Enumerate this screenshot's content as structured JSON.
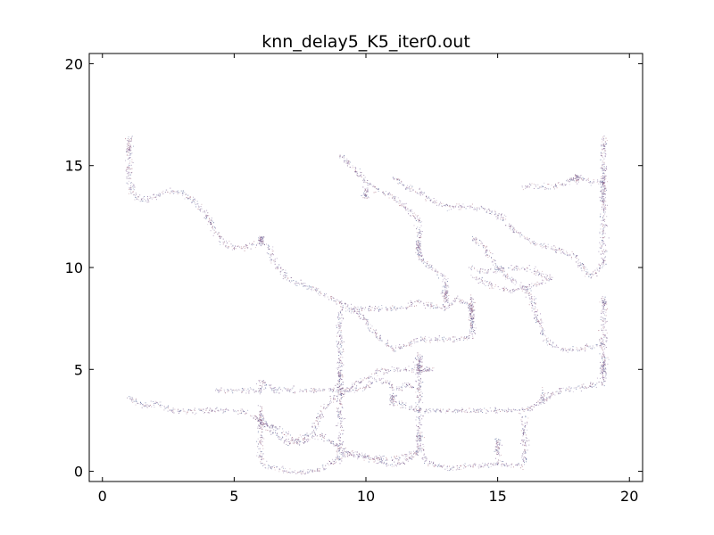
{
  "chart_data": {
    "type": "scatter",
    "title": "knn_delay5_K5_iter0.out",
    "xlabel": "",
    "ylabel": "",
    "xlim": [
      -0.5,
      20.5
    ],
    "ylim": [
      -0.5,
      20.5
    ],
    "xticks": [
      0,
      5,
      10,
      15,
      20
    ],
    "yticks": [
      0,
      5,
      10,
      15,
      20
    ],
    "xtick_labels": [
      "0",
      "5",
      "10",
      "15",
      "20"
    ],
    "ytick_labels": [
      "0",
      "5",
      "10",
      "15",
      "20"
    ],
    "grid": false,
    "legend": "none",
    "marker_colors": [
      "#6a4a7a",
      "#8a6aa0",
      "#b07a8a",
      "#5a6a9a",
      "#9a8ab0"
    ],
    "trajectories": [
      {
        "name": "",
        "points": [
          [
            1.0,
            16.5
          ],
          [
            1.0,
            15.5
          ],
          [
            1.0,
            14.5
          ],
          [
            1.1,
            13.7
          ],
          [
            1.5,
            13.3
          ],
          [
            2.0,
            13.5
          ],
          [
            2.5,
            13.8
          ],
          [
            3.0,
            13.7
          ],
          [
            3.5,
            13.2
          ],
          [
            4.0,
            12.4
          ],
          [
            4.4,
            11.5
          ],
          [
            4.8,
            11.0
          ],
          [
            5.5,
            11.0
          ],
          [
            6.0,
            11.3
          ],
          [
            6.3,
            11.0
          ],
          [
            6.5,
            10.3
          ],
          [
            6.8,
            9.8
          ],
          [
            7.0,
            9.5
          ],
          [
            7.5,
            9.2
          ],
          [
            8.0,
            9.0
          ],
          [
            8.5,
            8.6
          ],
          [
            9.0,
            8.3
          ],
          [
            9.5,
            8.0
          ],
          [
            10.0,
            8.0
          ],
          [
            10.5,
            8.0
          ],
          [
            11.0,
            8.0
          ],
          [
            11.5,
            8.1
          ],
          [
            12.0,
            8.4
          ],
          [
            12.5,
            8.1
          ],
          [
            13.0,
            8.0
          ],
          [
            13.5,
            8.5
          ],
          [
            14.0,
            8.0
          ]
        ]
      },
      {
        "name": "",
        "points": [
          [
            9.0,
            15.6
          ],
          [
            9.3,
            15.2
          ],
          [
            9.6,
            14.8
          ],
          [
            10.0,
            14.2
          ],
          [
            10.5,
            13.8
          ],
          [
            11.0,
            13.5
          ],
          [
            11.5,
            13.0
          ],
          [
            12.0,
            12.3
          ],
          [
            12.0,
            11.5
          ],
          [
            12.0,
            10.5
          ],
          [
            12.3,
            10.2
          ],
          [
            12.7,
            9.8
          ],
          [
            13.0,
            9.5
          ],
          [
            13.0,
            8.5
          ]
        ]
      },
      {
        "name": "",
        "points": [
          [
            11.0,
            14.5
          ],
          [
            11.5,
            14.0
          ],
          [
            12.0,
            13.7
          ],
          [
            12.5,
            13.3
          ],
          [
            13.0,
            13.0
          ],
          [
            13.5,
            13.0
          ],
          [
            14.0,
            13.0
          ],
          [
            14.5,
            12.9
          ],
          [
            15.0,
            12.6
          ],
          [
            15.5,
            12.0
          ],
          [
            16.0,
            11.5
          ],
          [
            16.5,
            11.1
          ],
          [
            17.0,
            11.0
          ],
          [
            17.5,
            10.8
          ],
          [
            18.0,
            10.5
          ],
          [
            18.3,
            9.8
          ],
          [
            18.6,
            9.6
          ],
          [
            19.0,
            10.2
          ],
          [
            19.0,
            11.5
          ],
          [
            19.0,
            13.0
          ],
          [
            19.0,
            14.5
          ],
          [
            19.0,
            16.5
          ]
        ]
      },
      {
        "name": "",
        "points": [
          [
            16.0,
            14.0
          ],
          [
            16.5,
            14.0
          ],
          [
            17.0,
            14.0
          ],
          [
            17.5,
            14.1
          ],
          [
            18.0,
            14.5
          ],
          [
            18.5,
            14.2
          ],
          [
            19.0,
            14.2
          ]
        ]
      },
      {
        "name": "",
        "points": [
          [
            14.0,
            11.5
          ],
          [
            14.5,
            11.0
          ],
          [
            15.0,
            10.0
          ],
          [
            15.3,
            9.6
          ],
          [
            15.7,
            9.3
          ],
          [
            16.0,
            9.0
          ],
          [
            16.3,
            8.5
          ],
          [
            16.5,
            7.5
          ],
          [
            16.8,
            6.5
          ],
          [
            17.2,
            6.1
          ],
          [
            17.5,
            6.0
          ],
          [
            18.0,
            6.0
          ],
          [
            18.5,
            6.1
          ],
          [
            19.0,
            6.3
          ]
        ]
      },
      {
        "name": "",
        "points": [
          [
            14.0,
            10.0
          ],
          [
            14.5,
            9.8
          ],
          [
            15.0,
            9.9
          ],
          [
            15.5,
            10.0
          ],
          [
            16.0,
            10.0
          ],
          [
            16.5,
            9.8
          ],
          [
            17.0,
            9.5
          ],
          [
            16.5,
            9.2
          ],
          [
            16.0,
            9.0
          ],
          [
            15.5,
            8.9
          ],
          [
            15.0,
            9.0
          ],
          [
            14.5,
            9.3
          ],
          [
            14.0,
            9.6
          ]
        ]
      },
      {
        "name": "",
        "points": [
          [
            14.0,
            8.6
          ],
          [
            14.0,
            8.0
          ],
          [
            14.0,
            7.3
          ],
          [
            14.0,
            6.6
          ],
          [
            13.5,
            6.5
          ],
          [
            13.0,
            6.5
          ],
          [
            12.5,
            6.5
          ],
          [
            12.0,
            6.5
          ],
          [
            11.5,
            6.2
          ],
          [
            11.0,
            6.0
          ],
          [
            10.7,
            6.3
          ],
          [
            10.3,
            6.8
          ],
          [
            10.0,
            7.4
          ],
          [
            9.7,
            7.8
          ],
          [
            9.3,
            8.0
          ],
          [
            9.0,
            8.0
          ]
        ]
      },
      {
        "name": "",
        "points": [
          [
            9.0,
            8.0
          ],
          [
            9.0,
            7.0
          ],
          [
            9.0,
            6.0
          ],
          [
            9.0,
            5.0
          ],
          [
            9.0,
            4.5
          ],
          [
            9.0,
            4.0
          ],
          [
            9.0,
            3.0
          ],
          [
            9.0,
            2.0
          ],
          [
            9.0,
            1.0
          ],
          [
            9.0,
            0.5
          ]
        ]
      },
      {
        "name": "",
        "points": [
          [
            19.0,
            8.5
          ],
          [
            19.0,
            7.5
          ],
          [
            19.0,
            6.5
          ],
          [
            19.0,
            5.5
          ],
          [
            19.0,
            4.5
          ],
          [
            18.5,
            4.2
          ],
          [
            18.0,
            4.1
          ],
          [
            17.5,
            4.0
          ],
          [
            17.0,
            3.8
          ],
          [
            16.5,
            3.3
          ],
          [
            16.0,
            3.0
          ],
          [
            15.5,
            3.0
          ],
          [
            15.0,
            3.0
          ],
          [
            14.5,
            3.0
          ],
          [
            14.0,
            3.0
          ],
          [
            13.5,
            3.0
          ],
          [
            13.0,
            3.0
          ],
          [
            12.5,
            3.0
          ],
          [
            12.0,
            3.0
          ],
          [
            11.5,
            3.2
          ],
          [
            11.0,
            3.5
          ]
        ]
      },
      {
        "name": "",
        "points": [
          [
            12.0,
            5.8
          ],
          [
            12.0,
            5.2
          ],
          [
            12.0,
            4.5
          ],
          [
            12.0,
            4.0
          ],
          [
            12.0,
            3.5
          ],
          [
            12.0,
            3.0
          ],
          [
            12.0,
            2.2
          ],
          [
            12.0,
            1.5
          ],
          [
            12.2,
            0.6
          ],
          [
            12.6,
            0.3
          ],
          [
            13.0,
            0.2
          ],
          [
            13.5,
            0.2
          ],
          [
            14.0,
            0.3
          ],
          [
            14.5,
            0.3
          ],
          [
            15.0,
            0.4
          ],
          [
            15.5,
            0.3
          ],
          [
            16.0,
            0.3
          ],
          [
            16.0,
            1.0
          ],
          [
            16.0,
            2.0
          ],
          [
            16.0,
            2.8
          ]
        ]
      },
      {
        "name": "",
        "points": [
          [
            15.0,
            1.6
          ],
          [
            15.0,
            1.0
          ],
          [
            15.0,
            0.5
          ]
        ]
      },
      {
        "name": "",
        "points": [
          [
            12.0,
            5.0
          ],
          [
            12.5,
            5.0
          ],
          [
            11.5,
            5.0
          ],
          [
            11.0,
            5.0
          ],
          [
            10.5,
            4.9
          ],
          [
            10.0,
            4.6
          ],
          [
            9.5,
            4.2
          ],
          [
            9.0,
            3.8
          ],
          [
            8.5,
            3.3
          ],
          [
            8.2,
            2.7
          ],
          [
            8.0,
            2.0
          ],
          [
            7.5,
            1.6
          ],
          [
            7.0,
            1.4
          ],
          [
            6.5,
            1.9
          ],
          [
            6.1,
            2.4
          ],
          [
            6.0,
            2.7
          ]
        ]
      },
      {
        "name": "",
        "points": [
          [
            4.3,
            4.0
          ],
          [
            5.0,
            4.0
          ],
          [
            5.5,
            4.0
          ],
          [
            6.0,
            4.0
          ],
          [
            6.0,
            4.5
          ],
          [
            6.2,
            4.3
          ],
          [
            6.5,
            4.0
          ],
          [
            7.0,
            4.0
          ],
          [
            7.5,
            4.0
          ],
          [
            8.0,
            4.0
          ],
          [
            8.5,
            4.0
          ],
          [
            9.0,
            4.0
          ],
          [
            9.5,
            4.0
          ],
          [
            10.0,
            4.1
          ],
          [
            10.3,
            4.5
          ],
          [
            10.8,
            4.4
          ],
          [
            11.2,
            4.0
          ],
          [
            11.5,
            4.3
          ],
          [
            12.0,
            4.0
          ]
        ]
      },
      {
        "name": "",
        "points": [
          [
            1.0,
            3.7
          ],
          [
            1.3,
            3.4
          ],
          [
            1.6,
            3.2
          ],
          [
            2.0,
            3.4
          ],
          [
            2.3,
            3.2
          ],
          [
            2.6,
            3.0
          ],
          [
            3.0,
            3.0
          ],
          [
            3.5,
            3.0
          ],
          [
            4.0,
            3.0
          ],
          [
            4.5,
            3.0
          ],
          [
            5.0,
            3.0
          ],
          [
            5.5,
            2.9
          ],
          [
            6.0,
            2.5
          ],
          [
            6.5,
            2.2
          ],
          [
            7.0,
            1.8
          ],
          [
            7.4,
            1.4
          ],
          [
            7.8,
            1.6
          ],
          [
            8.2,
            1.8
          ],
          [
            8.6,
            1.5
          ],
          [
            9.0,
            1.2
          ],
          [
            9.3,
            0.9
          ],
          [
            9.6,
            0.8
          ],
          [
            10.0,
            0.7
          ],
          [
            10.5,
            0.5
          ],
          [
            11.0,
            0.3
          ],
          [
            11.5,
            0.5
          ],
          [
            11.8,
            0.8
          ],
          [
            12.0,
            1.0
          ]
        ]
      },
      {
        "name": "",
        "points": [
          [
            6.0,
            2.8
          ],
          [
            6.0,
            2.0
          ],
          [
            6.0,
            1.2
          ],
          [
            6.0,
            0.5
          ],
          [
            6.3,
            0.2
          ],
          [
            6.8,
            0.1
          ],
          [
            7.3,
            0.0
          ],
          [
            7.8,
            0.0
          ],
          [
            8.3,
            0.1
          ],
          [
            8.7,
            0.4
          ],
          [
            9.0,
            0.8
          ],
          [
            9.5,
            0.9
          ],
          [
            10.0,
            0.8
          ],
          [
            10.5,
            0.7
          ],
          [
            11.0,
            0.6
          ],
          [
            11.5,
            0.8
          ],
          [
            12.0,
            1.0
          ]
        ]
      },
      {
        "name": "",
        "points": [
          [
            10.0,
            13.9
          ],
          [
            10.0,
            13.4
          ]
        ]
      },
      {
        "name": "",
        "points": [
          [
            11.0,
            3.8
          ],
          [
            11.0,
            3.3
          ]
        ]
      }
    ],
    "clusters": [
      {
        "x": 6.0,
        "y": 11.4,
        "spread": 0.12,
        "count": 45
      },
      {
        "x": 12.0,
        "y": 11.0,
        "spread": 0.2,
        "count": 50
      },
      {
        "x": 12.0,
        "y": 5.3,
        "spread": 0.25,
        "count": 55
      },
      {
        "x": 14.0,
        "y": 7.7,
        "spread": 0.4,
        "count": 70
      },
      {
        "x": 19.0,
        "y": 13.8,
        "spread": 0.5,
        "count": 80
      },
      {
        "x": 19.0,
        "y": 5.0,
        "spread": 0.4,
        "count": 55
      },
      {
        "x": 18.0,
        "y": 14.4,
        "spread": 0.12,
        "count": 35
      },
      {
        "x": 9.0,
        "y": 4.5,
        "spread": 0.3,
        "count": 45
      },
      {
        "x": 11.0,
        "y": 3.6,
        "spread": 0.12,
        "count": 25
      },
      {
        "x": 13.0,
        "y": 8.6,
        "spread": 0.3,
        "count": 45
      },
      {
        "x": 6.0,
        "y": 2.7,
        "spread": 0.25,
        "count": 40
      },
      {
        "x": 12.0,
        "y": 1.6,
        "spread": 0.2,
        "count": 25
      },
      {
        "x": 15.0,
        "y": 1.3,
        "spread": 0.2,
        "count": 25
      },
      {
        "x": 1.0,
        "y": 15.8,
        "spread": 0.3,
        "count": 30
      },
      {
        "x": 10.0,
        "y": 13.7,
        "spread": 0.12,
        "count": 20
      },
      {
        "x": 19.0,
        "y": 8.2,
        "spread": 0.25,
        "count": 30
      },
      {
        "x": 16.7,
        "y": 3.6,
        "spread": 0.2,
        "count": 30
      }
    ]
  }
}
